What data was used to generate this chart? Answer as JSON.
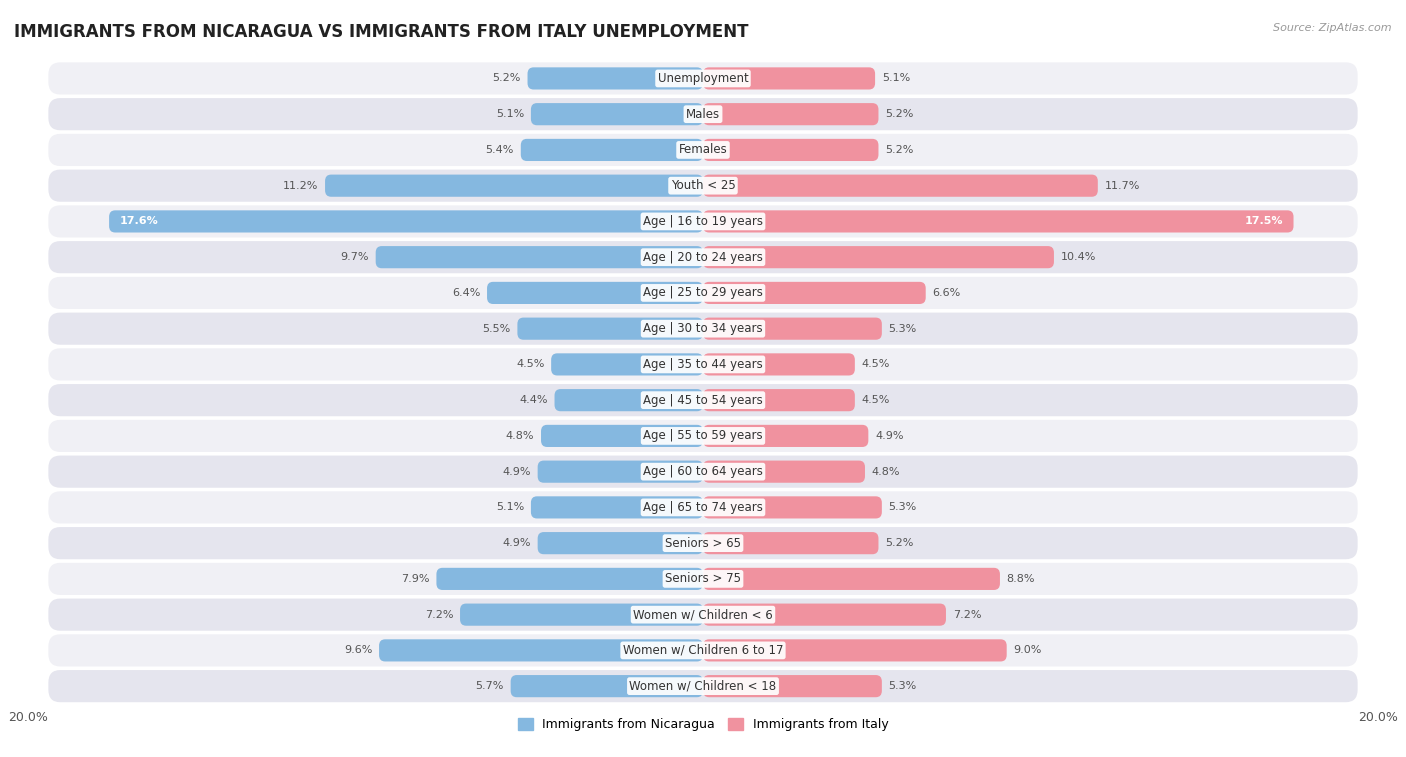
{
  "title": "IMMIGRANTS FROM NICARAGUA VS IMMIGRANTS FROM ITALY UNEMPLOYMENT",
  "source": "Source: ZipAtlas.com",
  "categories": [
    "Unemployment",
    "Males",
    "Females",
    "Youth < 25",
    "Age | 16 to 19 years",
    "Age | 20 to 24 years",
    "Age | 25 to 29 years",
    "Age | 30 to 34 years",
    "Age | 35 to 44 years",
    "Age | 45 to 54 years",
    "Age | 55 to 59 years",
    "Age | 60 to 64 years",
    "Age | 65 to 74 years",
    "Seniors > 65",
    "Seniors > 75",
    "Women w/ Children < 6",
    "Women w/ Children 6 to 17",
    "Women w/ Children < 18"
  ],
  "nicaragua_values": [
    5.2,
    5.1,
    5.4,
    11.2,
    17.6,
    9.7,
    6.4,
    5.5,
    4.5,
    4.4,
    4.8,
    4.9,
    5.1,
    4.9,
    7.9,
    7.2,
    9.6,
    5.7
  ],
  "italy_values": [
    5.1,
    5.2,
    5.2,
    11.7,
    17.5,
    10.4,
    6.6,
    5.3,
    4.5,
    4.5,
    4.9,
    4.8,
    5.3,
    5.2,
    8.8,
    7.2,
    9.0,
    5.3
  ],
  "nicaragua_color": "#85B8E0",
  "italy_color": "#F0929F",
  "nicaragua_label": "Immigrants from Nicaragua",
  "italy_label": "Immigrants from Italy",
  "xlim": 20.0,
  "row_color_odd": "#f5f5f5",
  "row_color_even": "#e8e8e8",
  "row_bg_color": "#e0e0e8",
  "title_fontsize": 12,
  "label_fontsize": 8.5,
  "value_fontsize": 8,
  "bar_height": 0.62
}
